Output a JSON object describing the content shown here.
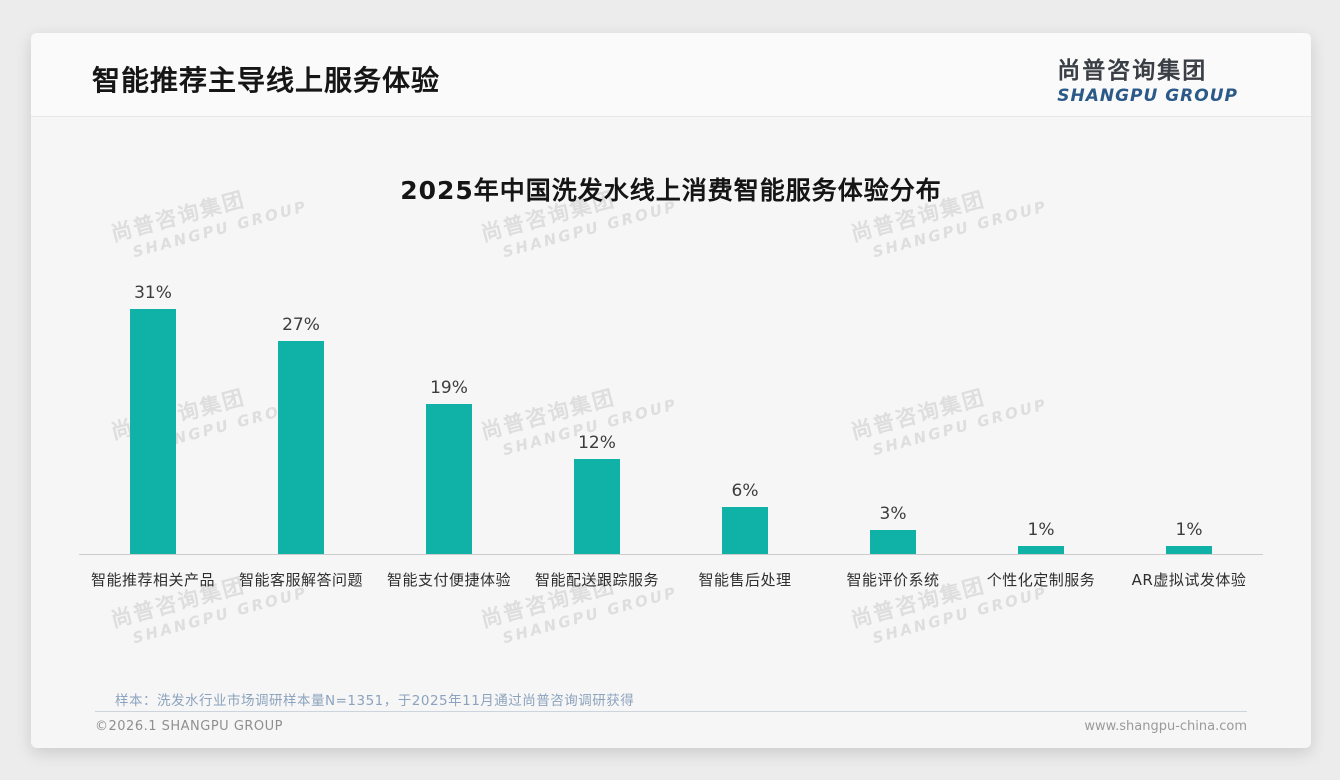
{
  "header": {
    "title": "智能推荐主导线上服务体验",
    "logo": {
      "cn": "尚普咨询集团",
      "en": "SHANGPU GROUP"
    }
  },
  "watermark": {
    "line1": "尚普咨询集团",
    "line2": "SHANGPU GROUP"
  },
  "chart_data": {
    "type": "bar",
    "title": "2025年中国洗发水线上消费智能服务体验分布",
    "categories": [
      "智能推荐相关产品",
      "智能客服解答问题",
      "智能支付便捷体验",
      "智能配送跟踪服务",
      "智能售后处理",
      "智能评价系统",
      "个性化定制服务",
      "AR虚拟试发体验"
    ],
    "values": [
      31,
      27,
      19,
      12,
      6,
      3,
      1,
      1
    ],
    "unit": "%",
    "value_labels": [
      "31%",
      "27%",
      "19%",
      "12%",
      "6%",
      "3%",
      "1%",
      "1%"
    ],
    "xlabel": "",
    "ylabel": "",
    "ylim": [
      0,
      35
    ],
    "grid": false,
    "legend": false,
    "bar_color": "#10b1a6",
    "axis_line_color": "#cccccc"
  },
  "note": {
    "text": "样本：洗发水行业市场调研样本量N=1351，于2025年11月通过尚普咨询调研获得"
  },
  "footer": {
    "copyright": "©2026.1 SHANGPU GROUP",
    "website": "www.shangpu-china.com"
  },
  "colors": {
    "bar": "#10b1a6",
    "logo_blue": "#2b5988",
    "note_text": "#8ca3be"
  }
}
